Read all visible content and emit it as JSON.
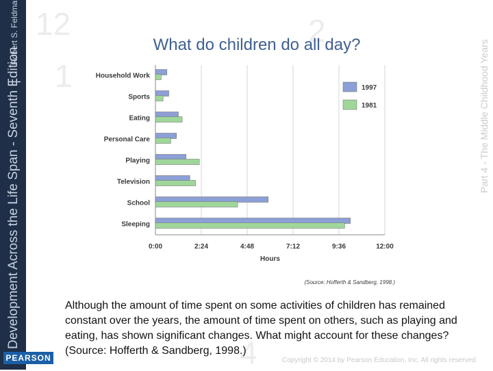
{
  "slide": {
    "title": "What do children do all day?",
    "body": "Although the amount of time spent on some activities of children has remained constant over the years, the amount of time spent on others, such as playing and eating, has shown significant changes. What might account for these changes?  (Source: Hofferth & Sandberg, 1998.)",
    "copyright": "Copyright © 2014 by Pearson Education, Inc. All rights reserved."
  },
  "sidebar": {
    "book_title": "Development Across the Life Span - Seventh Edition",
    "separator": "|",
    "author": "Robert S. Feldman",
    "publisher": "PEARSON"
  },
  "part_label": "Part 4 - The Middle Childhood Years",
  "background_numbers": [
    "12",
    "1",
    "2",
    "4"
  ],
  "colors": {
    "series_1997": "#8c9fd6",
    "series_1981": "#9fd79a",
    "title": "#3f5f91",
    "sidebar": "#1f2f47"
  },
  "chart_data": {
    "type": "bar",
    "orientation": "horizontal",
    "categories": [
      "Household Work",
      "Sports",
      "Eating",
      "Personal Care",
      "Playing",
      "Television",
      "School",
      "Sleeping"
    ],
    "series": [
      {
        "name": "1997",
        "values": [
          0.6,
          0.7,
          1.2,
          1.1,
          1.6,
          1.8,
          5.9,
          10.2
        ]
      },
      {
        "name": "1981",
        "values": [
          0.3,
          0.4,
          1.4,
          0.8,
          2.3,
          2.1,
          4.3,
          9.9
        ]
      }
    ],
    "xlabel": "Hours",
    "xlim": [
      0,
      12
    ],
    "x_ticks": [
      0,
      2.4,
      4.8,
      7.2,
      9.6,
      12
    ],
    "x_tick_labels": [
      "0:00",
      "2:24",
      "4:48",
      "7:12",
      "9:36",
      "12:00"
    ],
    "source_note": "(Source: Hofferth & Sandberg, 1998.)",
    "legend_position": "top-right"
  }
}
